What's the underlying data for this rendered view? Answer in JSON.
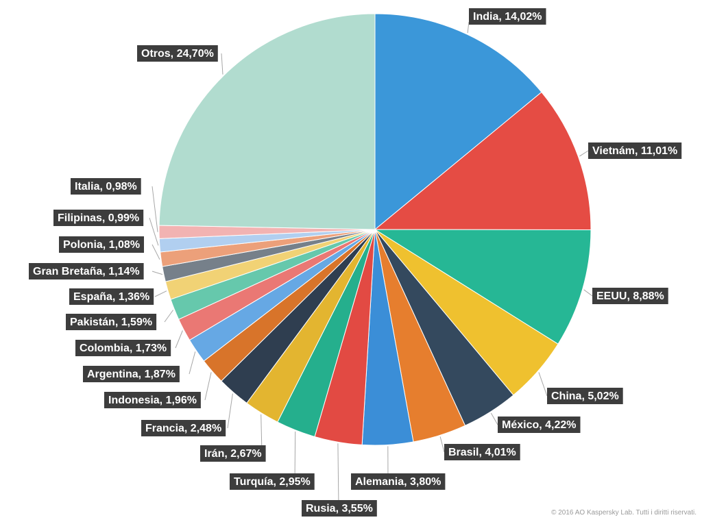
{
  "chart_data": {
    "type": "pie",
    "title": "",
    "slices": [
      {
        "label": "India, 14,02%",
        "value": 14.02,
        "color": "#3b97d9"
      },
      {
        "label": "Vietnám, 11,01%",
        "value": 11.01,
        "color": "#e54c44"
      },
      {
        "label": "EEUU, 8,88%",
        "value": 8.88,
        "color": "#26b795"
      },
      {
        "label": "China, 5,02%",
        "value": 5.02,
        "color": "#efc12f"
      },
      {
        "label": "México, 4,22%",
        "value": 4.22,
        "color": "#34495e"
      },
      {
        "label": "Brasil, 4,01%",
        "value": 4.01,
        "color": "#e67e2e"
      },
      {
        "label": "Alemania, 3,80%",
        "value": 3.8,
        "color": "#3b8ed7"
      },
      {
        "label": "Rusia, 3,55%",
        "value": 3.55,
        "color": "#e24a43"
      },
      {
        "label": "Turquía, 2,95%",
        "value": 2.95,
        "color": "#25af8d"
      },
      {
        "label": "Irán, 2,67%",
        "value": 2.67,
        "color": "#e3b530"
      },
      {
        "label": "Francia, 2,48%",
        "value": 2.48,
        "color": "#2f3e50"
      },
      {
        "label": "Indonesia, 1,96%",
        "value": 1.96,
        "color": "#d8742a"
      },
      {
        "label": "Argentina, 1,87%",
        "value": 1.87,
        "color": "#66a8e4"
      },
      {
        "label": "Colombia, 1,73%",
        "value": 1.73,
        "color": "#ea7874"
      },
      {
        "label": "Pakistán, 1,59%",
        "value": 1.59,
        "color": "#66c8ac"
      },
      {
        "label": "España, 1,36%",
        "value": 1.36,
        "color": "#f1d275"
      },
      {
        "label": "Gran Bretaña, 1,14%",
        "value": 1.14,
        "color": "#76808a"
      },
      {
        "label": "Polonia, 1,08%",
        "value": 1.08,
        "color": "#eca07a"
      },
      {
        "label": "Filipinas, 0,99%",
        "value": 0.99,
        "color": "#b1cff0"
      },
      {
        "label": "Italia, 0,98%",
        "value": 0.98,
        "color": "#f2b3b2"
      },
      {
        "label": "Otros, 24,70%",
        "value": 24.7,
        "color": "#b1dccf"
      }
    ]
  },
  "footer": {
    "copyright": "© 2016 AO Kaspersky Lab. Tutti i diritti riservati."
  }
}
